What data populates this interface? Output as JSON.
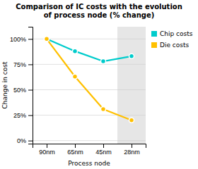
{
  "chart_data": {
    "type": "line",
    "title": "Comparison of IC costs with the evolution\nof process node (% change)",
    "x_label": "Process node",
    "y_label": "Change in cost",
    "categories": [
      "90nm",
      "65nm",
      "45nm",
      "28nm"
    ],
    "series": [
      {
        "name": "Chip costs",
        "color": "#00CCCC",
        "marker": "circle",
        "values": [
          100,
          88,
          78,
          83
        ]
      },
      {
        "name": "Die costs",
        "color": "#FFC000",
        "marker": "circle",
        "values": [
          100,
          63,
          31,
          20
        ]
      }
    ],
    "ylim": [
      -3,
      112
    ],
    "yticks": [
      {
        "value": 0,
        "label": "0%"
      },
      {
        "value": 25,
        "label": "25%"
      },
      {
        "value": 50,
        "label": "50%"
      },
      {
        "value": 75,
        "label": "75%"
      },
      {
        "value": 100,
        "label": "100%"
      }
    ],
    "grid": true,
    "legend": "right"
  }
}
